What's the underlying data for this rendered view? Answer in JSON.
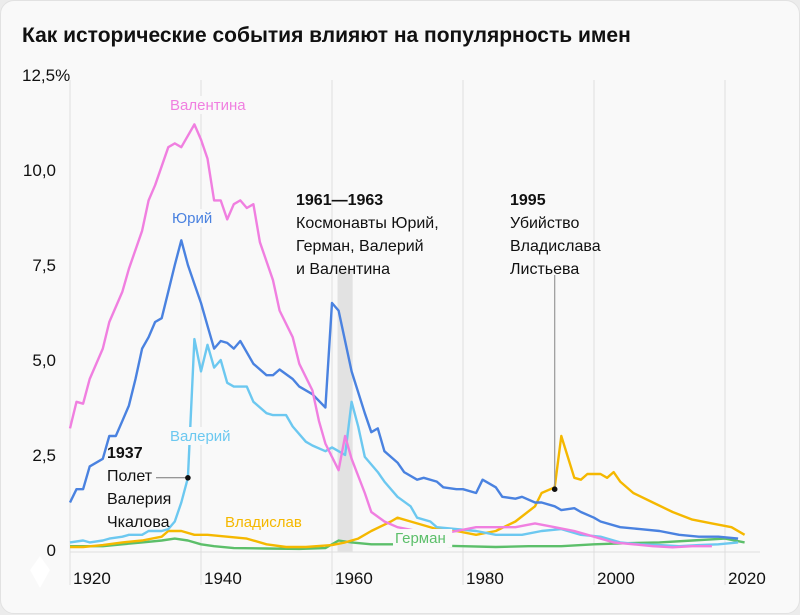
{
  "chart_data": {
    "type": "line",
    "title": "Как исторические события влияют на популярность имен",
    "xlabel": "",
    "ylabel": "",
    "xlim": [
      1920,
      2023
    ],
    "ylim": [
      0,
      12.5
    ],
    "x_ticks": [
      "1920",
      "1940",
      "1960",
      "1980",
      "2000",
      "2020"
    ],
    "x_tick_values": [
      1920,
      1940,
      1960,
      1980,
      2000,
      2020
    ],
    "y_ticks": [
      "0",
      "2,5",
      "5,0",
      "7,5",
      "10,0",
      "12,5%"
    ],
    "y_tick_values": [
      0,
      2.5,
      5,
      7.5,
      10,
      12.5
    ],
    "grid": "vertical",
    "series": [
      {
        "name": "Валентина",
        "color": "#f07fe0",
        "points": [
          [
            1920,
            3.2
          ],
          [
            1921,
            3.9
          ],
          [
            1922,
            3.85
          ],
          [
            1923,
            4.5
          ],
          [
            1925,
            5.3
          ],
          [
            1926,
            6.0
          ],
          [
            1928,
            6.8
          ],
          [
            1929,
            7.4
          ],
          [
            1931,
            8.4
          ],
          [
            1932,
            9.2
          ],
          [
            1933,
            9.6
          ],
          [
            1934,
            10.1
          ],
          [
            1935,
            10.6
          ],
          [
            1936,
            10.7
          ],
          [
            1937,
            10.6
          ],
          [
            1939,
            11.2
          ],
          [
            1940,
            10.8
          ],
          [
            1941,
            10.3
          ],
          [
            1942,
            9.2
          ],
          [
            1943,
            9.2
          ],
          [
            1944,
            8.7
          ],
          [
            1945,
            9.1
          ],
          [
            1946,
            9.2
          ],
          [
            1947,
            9.0
          ],
          [
            1948,
            9.1
          ],
          [
            1949,
            8.1
          ],
          [
            1951,
            7.1
          ],
          [
            1952,
            6.3
          ],
          [
            1954,
            5.6
          ],
          [
            1955,
            4.9
          ],
          [
            1957,
            4.2
          ],
          [
            1958,
            3.4
          ],
          [
            1959,
            2.8
          ],
          [
            1961,
            2.1
          ],
          [
            1962,
            3.0
          ],
          [
            1963,
            2.4
          ],
          [
            1965,
            1.5
          ],
          [
            1966,
            1.0
          ],
          [
            1968,
            0.75
          ],
          [
            1970,
            0.6
          ],
          [
            1973,
            0.5
          ],
          [
            1976,
            0.4
          ],
          [
            1979,
            0.5
          ],
          [
            1982,
            0.6
          ],
          [
            1985,
            0.6
          ],
          [
            1988,
            0.6
          ],
          [
            1991,
            0.7
          ],
          [
            1994,
            0.6
          ],
          [
            1997,
            0.5
          ],
          [
            2000,
            0.35
          ],
          [
            2003,
            0.2
          ],
          [
            2006,
            0.15
          ],
          [
            2009,
            0.1
          ],
          [
            2012,
            0.07
          ],
          [
            2015,
            0.1
          ],
          [
            2018,
            0.1
          ]
        ]
      },
      {
        "name": "Юрий",
        "color": "#4a82e0",
        "points": [
          [
            1920,
            1.25
          ],
          [
            1921,
            1.6
          ],
          [
            1922,
            1.6
          ],
          [
            1923,
            2.2
          ],
          [
            1925,
            2.4
          ],
          [
            1926,
            3.0
          ],
          [
            1927,
            3.0
          ],
          [
            1928,
            3.4
          ],
          [
            1929,
            3.8
          ],
          [
            1930,
            4.5
          ],
          [
            1931,
            5.3
          ],
          [
            1932,
            5.6
          ],
          [
            1933,
            6.0
          ],
          [
            1934,
            6.1
          ],
          [
            1935,
            6.8
          ],
          [
            1936,
            7.5
          ],
          [
            1937,
            8.15
          ],
          [
            1938,
            7.5
          ],
          [
            1939,
            7.0
          ],
          [
            1940,
            6.5
          ],
          [
            1941,
            5.9
          ],
          [
            1942,
            5.3
          ],
          [
            1943,
            5.5
          ],
          [
            1944,
            5.45
          ],
          [
            1945,
            5.3
          ],
          [
            1946,
            5.5
          ],
          [
            1948,
            4.9
          ],
          [
            1950,
            4.6
          ],
          [
            1951,
            4.6
          ],
          [
            1952,
            4.75
          ],
          [
            1954,
            4.5
          ],
          [
            1955,
            4.3
          ],
          [
            1957,
            4.1
          ],
          [
            1959,
            3.75
          ],
          [
            1960,
            6.5
          ],
          [
            1961,
            6.3
          ],
          [
            1962,
            5.5
          ],
          [
            1963,
            4.7
          ],
          [
            1965,
            3.6
          ],
          [
            1966,
            3.1
          ],
          [
            1967,
            3.2
          ],
          [
            1968,
            2.6
          ],
          [
            1970,
            2.3
          ],
          [
            1971,
            2.05
          ],
          [
            1973,
            1.85
          ],
          [
            1974,
            1.9
          ],
          [
            1976,
            1.8
          ],
          [
            1977,
            1.65
          ],
          [
            1979,
            1.6
          ],
          [
            1980,
            1.6
          ],
          [
            1982,
            1.5
          ],
          [
            1983,
            1.85
          ],
          [
            1985,
            1.65
          ],
          [
            1986,
            1.4
          ],
          [
            1988,
            1.35
          ],
          [
            1989,
            1.4
          ],
          [
            1991,
            1.25
          ],
          [
            1992,
            1.25
          ],
          [
            1994,
            1.15
          ],
          [
            1995,
            1.05
          ],
          [
            1997,
            1.1
          ],
          [
            1998,
            1.0
          ],
          [
            2000,
            0.85
          ],
          [
            2001,
            0.75
          ],
          [
            2004,
            0.6
          ],
          [
            2007,
            0.55
          ],
          [
            2010,
            0.5
          ],
          [
            2013,
            0.4
          ],
          [
            2016,
            0.35
          ],
          [
            2019,
            0.35
          ],
          [
            2022,
            0.3
          ]
        ]
      },
      {
        "name": "Валерий",
        "color": "#6cc8f0",
        "points": [
          [
            1920,
            0.2
          ],
          [
            1922,
            0.25
          ],
          [
            1923,
            0.2
          ],
          [
            1925,
            0.25
          ],
          [
            1926,
            0.3
          ],
          [
            1928,
            0.35
          ],
          [
            1929,
            0.4
          ],
          [
            1931,
            0.4
          ],
          [
            1932,
            0.5
          ],
          [
            1934,
            0.5
          ],
          [
            1935,
            0.55
          ],
          [
            1936,
            0.75
          ],
          [
            1937,
            1.25
          ],
          [
            1938,
            1.9
          ],
          [
            1939,
            5.55
          ],
          [
            1940,
            4.7
          ],
          [
            1941,
            5.4
          ],
          [
            1942,
            4.8
          ],
          [
            1943,
            5.0
          ],
          [
            1944,
            4.4
          ],
          [
            1945,
            4.3
          ],
          [
            1947,
            4.3
          ],
          [
            1948,
            3.9
          ],
          [
            1950,
            3.6
          ],
          [
            1951,
            3.55
          ],
          [
            1953,
            3.55
          ],
          [
            1954,
            3.25
          ],
          [
            1956,
            2.85
          ],
          [
            1957,
            2.75
          ],
          [
            1959,
            2.6
          ],
          [
            1960,
            2.7
          ],
          [
            1961,
            2.6
          ],
          [
            1962,
            2.5
          ],
          [
            1963,
            3.9
          ],
          [
            1964,
            3.25
          ],
          [
            1965,
            2.45
          ],
          [
            1967,
            2.05
          ],
          [
            1968,
            1.8
          ],
          [
            1970,
            1.4
          ],
          [
            1972,
            1.15
          ],
          [
            1973,
            0.85
          ],
          [
            1975,
            0.75
          ],
          [
            1976,
            0.6
          ],
          [
            1979,
            0.55
          ],
          [
            1982,
            0.5
          ],
          [
            1985,
            0.4
          ],
          [
            1989,
            0.4
          ],
          [
            1992,
            0.5
          ],
          [
            1995,
            0.55
          ],
          [
            1998,
            0.4
          ],
          [
            2001,
            0.35
          ],
          [
            2004,
            0.2
          ],
          [
            2007,
            0.15
          ],
          [
            2010,
            0.13
          ],
          [
            2013,
            0.1
          ],
          [
            2016,
            0.13
          ],
          [
            2019,
            0.15
          ],
          [
            2022,
            0.2
          ]
        ]
      },
      {
        "name": "Владислав",
        "color": "#f5b800",
        "points": [
          [
            1920,
            0.08
          ],
          [
            1922,
            0.08
          ],
          [
            1925,
            0.13
          ],
          [
            1928,
            0.2
          ],
          [
            1931,
            0.25
          ],
          [
            1934,
            0.35
          ],
          [
            1935,
            0.5
          ],
          [
            1937,
            0.5
          ],
          [
            1939,
            0.4
          ],
          [
            1941,
            0.4
          ],
          [
            1944,
            0.35
          ],
          [
            1947,
            0.3
          ],
          [
            1950,
            0.15
          ],
          [
            1953,
            0.08
          ],
          [
            1956,
            0.08
          ],
          [
            1960,
            0.13
          ],
          [
            1962,
            0.2
          ],
          [
            1964,
            0.3
          ],
          [
            1966,
            0.5
          ],
          [
            1969,
            0.75
          ],
          [
            1970,
            0.85
          ],
          [
            1972,
            0.75
          ],
          [
            1973,
            0.7
          ],
          [
            1976,
            0.55
          ],
          [
            1979,
            0.5
          ],
          [
            1982,
            0.4
          ],
          [
            1985,
            0.5
          ],
          [
            1988,
            0.75
          ],
          [
            1991,
            1.15
          ],
          [
            1992,
            1.5
          ],
          [
            1994,
            1.65
          ],
          [
            1995,
            3.0
          ],
          [
            1996,
            2.45
          ],
          [
            1997,
            1.9
          ],
          [
            1998,
            1.85
          ],
          [
            1999,
            2.0
          ],
          [
            2001,
            2.0
          ],
          [
            2002,
            1.9
          ],
          [
            2003,
            2.05
          ],
          [
            2004,
            1.8
          ],
          [
            2006,
            1.5
          ],
          [
            2009,
            1.25
          ],
          [
            2012,
            1.0
          ],
          [
            2015,
            0.8
          ],
          [
            2018,
            0.7
          ],
          [
            2021,
            0.6
          ],
          [
            2023,
            0.4
          ]
        ]
      },
      {
        "name": "Герман",
        "color": "#5cbf6a",
        "points": [
          [
            1920,
            0.1
          ],
          [
            1925,
            0.1
          ],
          [
            1928,
            0.15
          ],
          [
            1931,
            0.2
          ],
          [
            1934,
            0.25
          ],
          [
            1936,
            0.3
          ],
          [
            1938,
            0.25
          ],
          [
            1940,
            0.15
          ],
          [
            1942,
            0.1
          ],
          [
            1945,
            0.05
          ],
          [
            1950,
            0.04
          ],
          [
            1955,
            0.03
          ],
          [
            1959,
            0.05
          ],
          [
            1961,
            0.25
          ],
          [
            1963,
            0.2
          ],
          [
            1966,
            0.15
          ],
          [
            1970,
            0.15
          ],
          [
            1975,
            0.12
          ],
          [
            1980,
            0.1
          ],
          [
            1985,
            0.08
          ],
          [
            1990,
            0.1
          ],
          [
            1995,
            0.1
          ],
          [
            2000,
            0.15
          ],
          [
            2005,
            0.18
          ],
          [
            2010,
            0.2
          ],
          [
            2015,
            0.25
          ],
          [
            2020,
            0.3
          ],
          [
            2023,
            0.2
          ]
        ]
      }
    ],
    "annotations": [
      {
        "year_label": "1937",
        "lines": [
          "Полет",
          "Валерия",
          "Чкалова"
        ],
        "marker_year": 1938,
        "marker_value": 1.9
      },
      {
        "year_label": "1961—1963",
        "lines": [
          "Космонавты Юрий,",
          "Герман, Валерий",
          "и Валентина"
        ],
        "band": [
          1961,
          1963
        ]
      },
      {
        "year_label": "1995",
        "lines": [
          "Убийство",
          "Владислава",
          "Листьева"
        ],
        "marker_year": 1994,
        "marker_value": 1.6
      }
    ]
  }
}
